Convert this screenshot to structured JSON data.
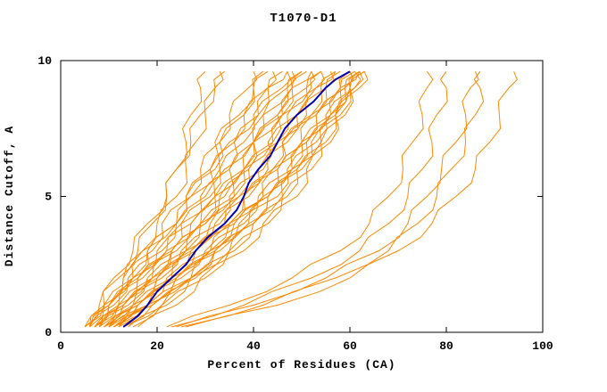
{
  "chart_data": {
    "type": "line",
    "title": "T1070-D1",
    "xlabel": "Percent of Residues (CA)",
    "ylabel": "Distance Cutoff, A",
    "xlim": [
      0,
      100
    ],
    "ylim": [
      0,
      10
    ],
    "x_ticks": [
      0,
      20,
      40,
      60,
      80,
      100
    ],
    "y_ticks": [
      0,
      5,
      10
    ],
    "grid": false,
    "legend": "none",
    "colors": {
      "model": "#ff8800",
      "highlight": "#0000b4",
      "axis": "#000000",
      "background": "#ffffff",
      "text": "#000000"
    },
    "style": {
      "model_width": 1,
      "highlight_width": 2,
      "jag_amplitude": 1.2
    },
    "y_levels": [
      0.2,
      1,
      2,
      3,
      4,
      5,
      6,
      7,
      8,
      9,
      9.6
    ],
    "series": [
      {
        "role": "model",
        "x": [
          5,
          8,
          12,
          16,
          19,
          22,
          24,
          26,
          27,
          29,
          30
        ]
      },
      {
        "role": "model",
        "x": [
          5,
          10,
          13,
          19,
          21,
          27,
          29,
          33,
          35,
          39,
          40
        ]
      },
      {
        "role": "model",
        "x": [
          6,
          9,
          15,
          18,
          24,
          26,
          31,
          32,
          37,
          40,
          42
        ]
      },
      {
        "role": "model",
        "x": [
          6,
          11,
          14,
          21,
          24,
          30,
          31,
          36,
          38,
          43,
          44
        ]
      },
      {
        "role": "model",
        "x": [
          7,
          10,
          17,
          20,
          27,
          29,
          35,
          36,
          41,
          43,
          46
        ]
      },
      {
        "role": "model",
        "x": [
          7,
          13,
          16,
          24,
          27,
          34,
          35,
          40,
          42,
          47,
          48
        ]
      },
      {
        "role": "model",
        "x": [
          8,
          12,
          19,
          23,
          30,
          33,
          39,
          40,
          45,
          47,
          50
        ]
      },
      {
        "role": "model",
        "x": [
          8,
          14,
          18,
          26,
          29,
          36,
          38,
          44,
          45,
          51,
          52
        ]
      },
      {
        "role": "model",
        "x": [
          9,
          13,
          21,
          25,
          33,
          35,
          42,
          43,
          49,
          51,
          54
        ]
      },
      {
        "role": "model",
        "x": [
          9,
          16,
          20,
          28,
          32,
          39,
          41,
          47,
          49,
          55,
          56
        ]
      },
      {
        "role": "model",
        "x": [
          10,
          15,
          23,
          27,
          35,
          38,
          45,
          46,
          53,
          55,
          58
        ]
      },
      {
        "role": "model",
        "x": [
          10,
          18,
          22,
          31,
          35,
          43,
          45,
          51,
          53,
          59,
          60
        ]
      },
      {
        "role": "model",
        "x": [
          11,
          16,
          25,
          30,
          38,
          41,
          48,
          50,
          56,
          58,
          61
        ]
      },
      {
        "role": "model",
        "x": [
          11,
          19,
          24,
          33,
          37,
          45,
          47,
          53,
          55,
          61,
          62
        ]
      },
      {
        "role": "model",
        "x": [
          12,
          18,
          27,
          32,
          40,
          43,
          50,
          52,
          58,
          60,
          63
        ]
      },
      {
        "role": "model",
        "x": [
          6,
          10,
          13,
          17,
          20,
          24,
          26,
          28,
          30,
          32,
          33
        ]
      },
      {
        "role": "model",
        "x": [
          7,
          10,
          16,
          18,
          24,
          26,
          32,
          33,
          38,
          40,
          43
        ]
      },
      {
        "role": "model",
        "x": [
          8,
          13,
          16,
          23,
          25,
          31,
          33,
          38,
          40,
          46,
          47
        ]
      },
      {
        "role": "model",
        "x": [
          9,
          13,
          20,
          23,
          30,
          32,
          38,
          40,
          46,
          48,
          51
        ]
      },
      {
        "role": "model",
        "x": [
          10,
          16,
          20,
          27,
          31,
          37,
          39,
          45,
          47,
          53,
          54
        ]
      },
      {
        "role": "model",
        "x": [
          11,
          16,
          24,
          28,
          36,
          38,
          44,
          46,
          52,
          54,
          57
        ]
      },
      {
        "role": "model",
        "x": [
          12,
          19,
          24,
          32,
          36,
          43,
          45,
          51,
          53,
          59,
          60
        ]
      },
      {
        "role": "model",
        "x": [
          13,
          19,
          28,
          32,
          40,
          43,
          49,
          51,
          57,
          59,
          62
        ]
      },
      {
        "role": "model",
        "x": [
          14,
          22,
          27,
          36,
          40,
          47,
          49,
          55,
          57,
          62,
          63
        ]
      },
      {
        "role": "model",
        "x": [
          15,
          21,
          30,
          35,
          43,
          46,
          52,
          54,
          59,
          60,
          62
        ]
      },
      {
        "role": "model",
        "x": [
          16,
          24,
          29,
          38,
          42,
          49,
          51,
          56,
          57,
          61,
          61
        ]
      },
      {
        "role": "model",
        "x": [
          5,
          9,
          11,
          15,
          18,
          22,
          24,
          27,
          29,
          32,
          34
        ]
      },
      {
        "role": "model",
        "x": [
          6,
          9,
          15,
          17,
          24,
          27,
          33,
          35,
          41,
          43,
          47
        ]
      },
      {
        "role": "model",
        "x": [
          7,
          12,
          15,
          22,
          25,
          32,
          34,
          40,
          42,
          48,
          50
        ]
      },
      {
        "role": "model",
        "x": [
          8,
          12,
          19,
          22,
          29,
          32,
          38,
          40,
          46,
          48,
          52
        ]
      },
      {
        "role": "model",
        "x": [
          9,
          15,
          19,
          26,
          29,
          36,
          38,
          44,
          46,
          52,
          54
        ]
      },
      {
        "role": "model",
        "x": [
          10,
          15,
          23,
          26,
          34,
          37,
          43,
          45,
          51,
          53,
          57
        ]
      },
      {
        "role": "model",
        "x": [
          11,
          18,
          23,
          31,
          35,
          42,
          44,
          50,
          52,
          58,
          60
        ]
      },
      {
        "role": "model",
        "x": [
          12,
          18,
          27,
          31,
          39,
          42,
          48,
          50,
          56,
          58,
          62
        ]
      },
      {
        "role": "model",
        "x": [
          13,
          21,
          27,
          35,
          39,
          46,
          48,
          54,
          56,
          60,
          63
        ]
      },
      {
        "role": "model",
        "x": [
          22,
          35,
          48,
          58,
          64,
          68,
          71,
          73,
          75,
          76,
          76
        ]
      },
      {
        "role": "model",
        "x": [
          23,
          38,
          52,
          62,
          68,
          72,
          75,
          77,
          78,
          80,
          80
        ]
      },
      {
        "role": "model",
        "x": [
          24,
          40,
          55,
          66,
          72,
          76,
          79,
          82,
          84,
          85,
          86
        ]
      },
      {
        "role": "model",
        "x": [
          25,
          42,
          57,
          68,
          74,
          78,
          81,
          84,
          86,
          87,
          87
        ]
      },
      {
        "role": "model",
        "x": [
          26,
          45,
          60,
          70,
          77,
          82,
          86,
          89,
          91,
          93,
          94
        ]
      },
      {
        "role": "highlight",
        "x": [
          13,
          18,
          23,
          28,
          34,
          38,
          41,
          45,
          49,
          55,
          60
        ]
      }
    ]
  }
}
